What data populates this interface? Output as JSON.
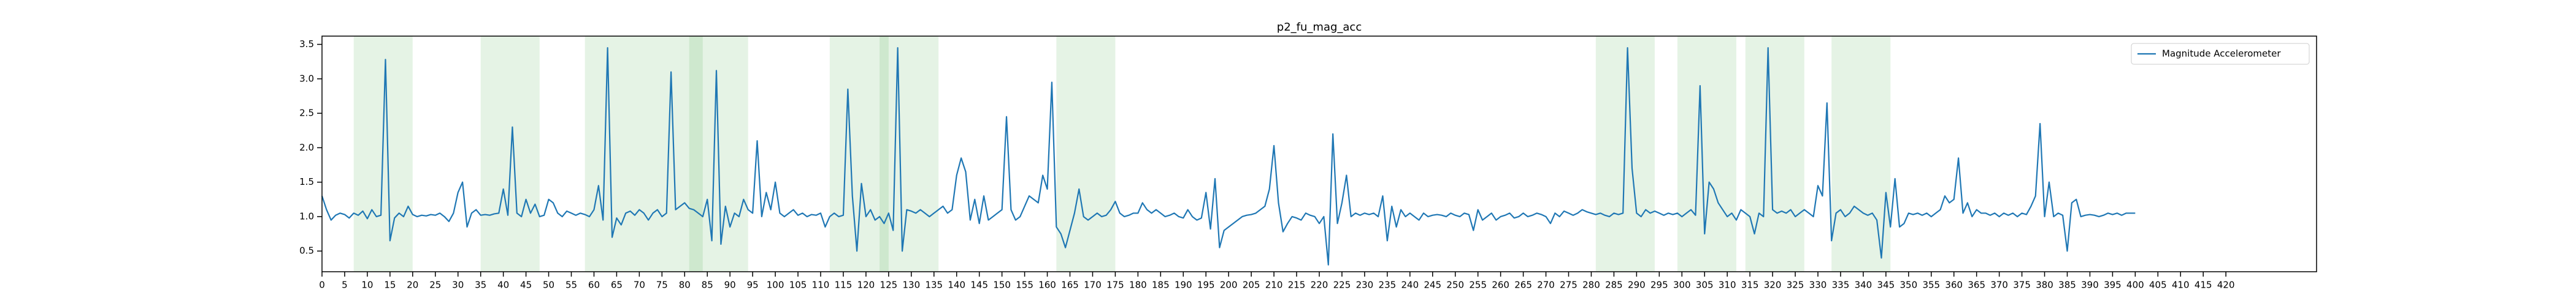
{
  "chart_data": {
    "type": "line",
    "title": "p2_fu_mag_acc",
    "series": [
      {
        "name": "Magnitude Accelerometer",
        "color": "#1f77b4",
        "values": [
          1.3,
          1.1,
          0.95,
          1.02,
          1.05,
          1.03,
          0.98,
          1.05,
          1.02,
          1.08,
          0.97,
          1.1,
          1.0,
          1.02,
          3.28,
          0.65,
          0.98,
          1.05,
          1.0,
          1.15,
          1.03,
          1.0,
          1.02,
          1.01,
          1.03,
          1.02,
          1.05,
          1.0,
          0.93,
          1.05,
          1.35,
          1.5,
          0.85,
          1.05,
          1.1,
          1.02,
          1.03,
          1.02,
          1.04,
          1.05,
          1.4,
          1.02,
          2.3,
          1.05,
          1.0,
          1.25,
          1.05,
          1.18,
          1.0,
          1.02,
          1.25,
          1.2,
          1.05,
          1.0,
          1.08,
          1.05,
          1.02,
          1.05,
          1.03,
          1.0,
          1.1,
          1.45,
          0.95,
          3.45,
          0.7,
          0.98,
          0.88,
          1.05,
          1.08,
          1.02,
          1.1,
          1.05,
          0.95,
          1.05,
          1.1,
          1.0,
          1.05,
          3.1,
          1.1,
          1.15,
          1.2,
          1.12,
          1.1,
          1.05,
          1.0,
          1.25,
          0.65,
          3.12,
          0.6,
          1.15,
          0.85,
          1.05,
          1.0,
          1.25,
          1.1,
          1.05,
          2.1,
          1.0,
          1.35,
          1.1,
          1.5,
          1.05,
          1.0,
          1.05,
          1.1,
          1.02,
          1.05,
          1.0,
          1.03,
          1.02,
          1.05,
          0.85,
          1.0,
          1.05,
          1.0,
          1.02,
          2.85,
          1.3,
          0.5,
          1.48,
          1.0,
          1.1,
          0.95,
          1.0,
          0.9,
          1.05,
          0.8,
          3.45,
          0.5,
          1.1,
          1.08,
          1.05,
          1.1,
          1.05,
          1.0,
          1.05,
          1.1,
          1.15,
          1.05,
          1.1,
          1.6,
          1.85,
          1.65,
          0.95,
          1.25,
          0.9,
          1.3,
          0.95,
          1.0,
          1.05,
          1.1,
          2.45,
          1.1,
          0.95,
          1.0,
          1.15,
          1.3,
          1.25,
          1.2,
          1.6,
          1.4,
          2.95,
          0.85,
          0.75,
          0.55,
          0.8,
          1.05,
          1.4,
          1.0,
          0.95,
          1.0,
          1.05,
          1.0,
          1.02,
          1.1,
          1.22,
          1.05,
          1.0,
          1.02,
          1.05,
          1.05,
          1.2,
          1.1,
          1.05,
          1.1,
          1.05,
          1.0,
          1.02,
          1.05,
          1.0,
          0.98,
          1.1,
          1.0,
          0.95,
          0.98,
          1.35,
          0.82,
          1.55,
          0.55,
          0.8,
          0.85,
          0.9,
          0.95,
          1.0,
          1.02,
          1.03,
          1.05,
          1.1,
          1.15,
          1.4,
          2.03,
          1.2,
          0.78,
          0.9,
          1.0,
          0.98,
          0.95,
          1.05,
          1.02,
          1.0,
          0.9,
          1.0,
          0.3,
          2.2,
          0.9,
          1.2,
          1.6,
          1.0,
          1.05,
          1.02,
          1.05,
          1.03,
          1.05,
          1.0,
          1.3,
          0.65,
          1.15,
          0.85,
          1.1,
          1.0,
          1.05,
          1.0,
          0.95,
          1.05,
          1.0,
          1.02,
          1.03,
          1.02,
          1.0,
          1.05,
          1.02,
          1.0,
          1.05,
          1.03,
          0.8,
          1.1,
          0.95,
          1.0,
          1.05,
          0.95,
          1.0,
          1.02,
          1.05,
          0.98,
          1.0,
          1.05,
          1.0,
          1.02,
          1.05,
          1.03,
          1.0,
          0.9,
          1.05,
          1.0,
          1.08,
          1.05,
          1.02,
          1.05,
          1.1,
          1.07,
          1.05,
          1.03,
          1.05,
          1.02,
          1.0,
          1.05,
          1.03,
          1.05,
          3.45,
          1.7,
          1.05,
          1.0,
          1.1,
          1.05,
          1.08,
          1.05,
          1.02,
          1.05,
          1.03,
          1.05,
          1.0,
          1.05,
          1.1,
          1.02,
          2.9,
          0.75,
          1.5,
          1.4,
          1.2,
          1.1,
          1.0,
          1.05,
          0.95,
          1.1,
          1.05,
          1.0,
          0.75,
          1.05,
          1.0,
          3.45,
          1.1,
          1.05,
          1.08,
          1.05,
          1.1,
          1.0,
          1.05,
          1.1,
          1.05,
          1.0,
          1.45,
          1.3,
          2.65,
          0.65,
          1.05,
          1.1,
          1.0,
          1.05,
          1.15,
          1.1,
          1.05,
          1.02,
          1.05,
          0.95,
          0.4,
          1.35,
          0.85,
          1.55,
          0.85,
          0.9,
          1.05,
          1.03,
          1.05,
          1.02,
          1.05,
          1.0,
          1.05,
          1.1,
          1.3,
          1.2,
          1.25,
          1.85,
          1.05,
          1.2,
          1.0,
          1.1,
          1.05,
          1.05,
          1.02,
          1.05,
          1.0,
          1.05,
          1.02,
          1.05,
          1.0,
          1.05,
          1.03,
          1.15,
          1.3,
          2.35,
          1.0,
          1.5,
          1.0,
          1.05,
          1.02,
          0.5,
          1.2,
          1.25,
          1.0,
          1.02,
          1.03,
          1.02,
          1.0,
          1.02,
          1.05,
          1.03,
          1.05,
          1.02,
          1.05,
          1.05,
          1.05
        ]
      }
    ],
    "spans": [
      [
        7,
        20
      ],
      [
        35,
        48
      ],
      [
        58,
        71
      ],
      [
        71,
        84
      ],
      [
        81,
        94
      ],
      [
        112,
        125
      ],
      [
        123,
        136
      ],
      [
        162,
        175
      ],
      [
        281,
        294
      ],
      [
        299,
        312
      ],
      [
        314,
        327
      ],
      [
        333,
        346
      ]
    ],
    "span_color": "#2ca02c",
    "xlim": [
      0,
      440
    ],
    "ylim": [
      0.2,
      3.62
    ],
    "xticks": [
      0,
      5,
      10,
      15,
      20,
      25,
      30,
      35,
      40,
      45,
      50,
      55,
      60,
      65,
      70,
      75,
      80,
      85,
      90,
      95,
      100,
      105,
      110,
      115,
      120,
      125,
      130,
      135,
      140,
      145,
      150,
      155,
      160,
      165,
      170,
      175,
      180,
      185,
      190,
      195,
      200,
      205,
      210,
      215,
      220,
      225,
      230,
      235,
      240,
      245,
      250,
      255,
      260,
      265,
      270,
      275,
      280,
      285,
      290,
      295,
      300,
      305,
      310,
      315,
      320,
      325,
      330,
      335,
      340,
      345,
      350,
      355,
      360,
      365,
      370,
      375,
      380,
      385,
      390,
      395,
      400,
      405,
      410,
      415,
      420
    ],
    "yticks": [
      0.5,
      {
        "value": 1,
        "label": "1.0"
      },
      1.5,
      {
        "value": 2,
        "label": "2.0"
      },
      2.5,
      {
        "value": 3,
        "label": "3.0"
      },
      3.5
    ],
    "legend": "upper right"
  }
}
